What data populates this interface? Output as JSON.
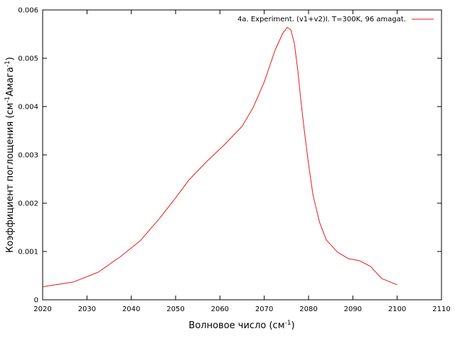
{
  "chart_data": {
    "type": "line",
    "xlabel": "Волновое число (см",
    "xlabel_sup": "-1",
    "xlabel_tail": ")",
    "ylabel": "Коэффициент поглощения (см",
    "ylabel_sup1": "-1",
    "ylabel_mid": "Амага",
    "ylabel_sup2": "-1",
    "ylabel_tail": ")",
    "xlim": [
      2020,
      2110
    ],
    "ylim": [
      0,
      0.006
    ],
    "x_ticks": [
      "2020",
      "2030",
      "2040",
      "2050",
      "2060",
      "2070",
      "2080",
      "2090",
      "2100",
      "2110"
    ],
    "y_ticks": [
      "0",
      "0.001",
      "0.002",
      "0.003",
      "0.004",
      "0.005",
      "0.006"
    ],
    "legend_position": "top-right",
    "series": [
      {
        "name": "4a. Experiment. (v1+v2)I. T=300K, 96 amagat.",
        "color": "#e31a1c",
        "x": [
          2020,
          2027,
          2032.5,
          2037.5,
          2042,
          2046.5,
          2050,
          2053,
          2057,
          2061,
          2065,
          2067.5,
          2070,
          2072.5,
          2074.2,
          2075.2,
          2076,
          2076.8,
          2077.6,
          2078.3,
          2079,
          2080,
          2081,
          2082.5,
          2084,
          2086.5,
          2089,
          2091.5,
          2094,
          2096.5,
          2100
        ],
        "y": [
          0.00027,
          0.00037,
          0.00057,
          0.00089,
          0.00122,
          0.0017,
          0.00211,
          0.00248,
          0.00286,
          0.00321,
          0.00359,
          0.00398,
          0.00451,
          0.00518,
          0.00552,
          0.00564,
          0.00559,
          0.00531,
          0.00473,
          0.0041,
          0.00354,
          0.00281,
          0.00217,
          0.0016,
          0.00124,
          0.00099,
          0.00085,
          0.00081,
          0.00069,
          0.00044,
          0.00031
        ]
      }
    ]
  }
}
